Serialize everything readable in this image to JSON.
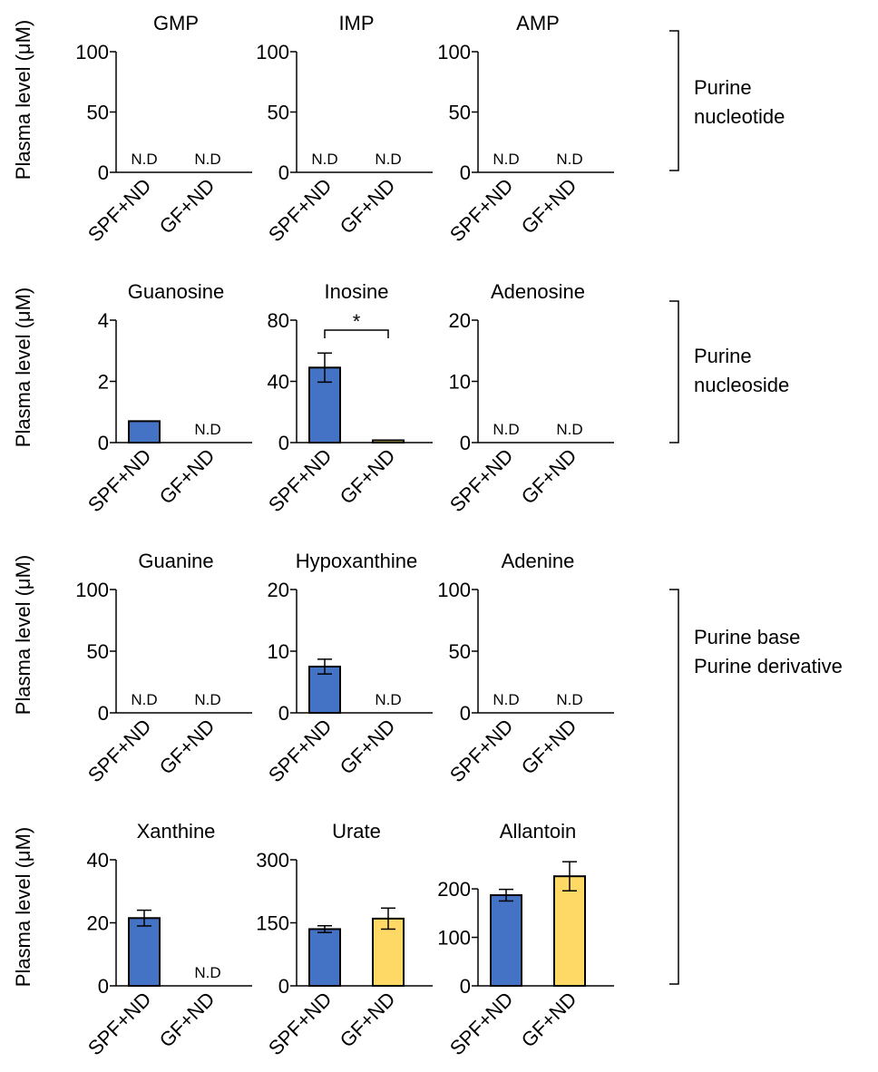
{
  "y_label": "Plasma level (μM)",
  "colors": {
    "SPF+ND": "#4472c4",
    "GF+ND": "#ffd966",
    "bar_stroke": "#000000"
  },
  "nd_label": "N.D",
  "groups": [
    {
      "lines": [
        "Purine",
        "nucleotide"
      ]
    },
    {
      "lines": [
        "Purine",
        "nucleoside"
      ]
    },
    {
      "lines": [
        "Purine base",
        "Purine derivative"
      ]
    }
  ],
  "chart_data": [
    {
      "type": "bar",
      "title": "GMP",
      "categories": [
        "SPF+ND",
        "GF+ND"
      ],
      "values": [
        null,
        null
      ],
      "errors": [
        null,
        null
      ],
      "nd": [
        true,
        true
      ],
      "yticks": [
        0,
        50,
        100
      ],
      "ylim": [
        0,
        100
      ]
    },
    {
      "type": "bar",
      "title": "IMP",
      "categories": [
        "SPF+ND",
        "GF+ND"
      ],
      "values": [
        null,
        null
      ],
      "errors": [
        null,
        null
      ],
      "nd": [
        true,
        true
      ],
      "yticks": [
        0,
        50,
        100
      ],
      "ylim": [
        0,
        100
      ]
    },
    {
      "type": "bar",
      "title": "AMP",
      "categories": [
        "SPF+ND",
        "GF+ND"
      ],
      "values": [
        null,
        null
      ],
      "errors": [
        null,
        null
      ],
      "nd": [
        true,
        true
      ],
      "yticks": [
        0,
        50,
        100
      ],
      "ylim": [
        0,
        100
      ]
    },
    {
      "type": "bar",
      "title": "Guanosine",
      "categories": [
        "SPF+ND",
        "GF+ND"
      ],
      "values": [
        0.7,
        null
      ],
      "errors": [
        0,
        null
      ],
      "nd": [
        false,
        true
      ],
      "yticks": [
        0,
        2,
        4
      ],
      "ylim": [
        0,
        4
      ]
    },
    {
      "type": "bar",
      "title": "Inosine",
      "categories": [
        "SPF+ND",
        "GF+ND"
      ],
      "values": [
        49,
        1.5
      ],
      "errors": [
        9.5,
        0
      ],
      "nd": [
        false,
        false
      ],
      "yticks": [
        0,
        40,
        80
      ],
      "ylim": [
        0,
        80
      ],
      "significance": "*"
    },
    {
      "type": "bar",
      "title": "Adenosine",
      "categories": [
        "SPF+ND",
        "GF+ND"
      ],
      "values": [
        null,
        null
      ],
      "errors": [
        null,
        null
      ],
      "nd": [
        true,
        true
      ],
      "yticks": [
        0,
        10,
        20
      ],
      "ylim": [
        0,
        20
      ]
    },
    {
      "type": "bar",
      "title": "Guanine",
      "categories": [
        "SPF+ND",
        "GF+ND"
      ],
      "values": [
        null,
        null
      ],
      "errors": [
        null,
        null
      ],
      "nd": [
        true,
        true
      ],
      "yticks": [
        0,
        50,
        100
      ],
      "ylim": [
        0,
        100
      ]
    },
    {
      "type": "bar",
      "title": "Hypoxanthine",
      "categories": [
        "SPF+ND",
        "GF+ND"
      ],
      "values": [
        7.5,
        null
      ],
      "errors": [
        1.2,
        null
      ],
      "nd": [
        false,
        true
      ],
      "yticks": [
        0,
        10,
        20
      ],
      "ylim": [
        0,
        20
      ]
    },
    {
      "type": "bar",
      "title": "Adenine",
      "categories": [
        "SPF+ND",
        "GF+ND"
      ],
      "values": [
        null,
        null
      ],
      "errors": [
        null,
        null
      ],
      "nd": [
        true,
        true
      ],
      "yticks": [
        0,
        50,
        100
      ],
      "ylim": [
        0,
        100
      ]
    },
    {
      "type": "bar",
      "title": "Xanthine",
      "categories": [
        "SPF+ND",
        "GF+ND"
      ],
      "values": [
        21.5,
        null
      ],
      "errors": [
        2.5,
        null
      ],
      "nd": [
        false,
        true
      ],
      "yticks": [
        0,
        20,
        40
      ],
      "ylim": [
        0,
        40
      ]
    },
    {
      "type": "bar",
      "title": "Urate",
      "categories": [
        "SPF+ND",
        "GF+ND"
      ],
      "values": [
        135,
        160
      ],
      "errors": [
        8,
        25
      ],
      "nd": [
        false,
        false
      ],
      "yticks": [
        0,
        150,
        300
      ],
      "ylim": [
        0,
        300
      ]
    },
    {
      "type": "bar",
      "title": "Allantoin",
      "categories": [
        "SPF+ND",
        "GF+ND"
      ],
      "values": [
        187,
        226
      ],
      "errors": [
        12,
        30
      ],
      "nd": [
        false,
        false
      ],
      "yticks": [
        0,
        100,
        200
      ],
      "ylim": [
        0,
        260
      ]
    }
  ]
}
